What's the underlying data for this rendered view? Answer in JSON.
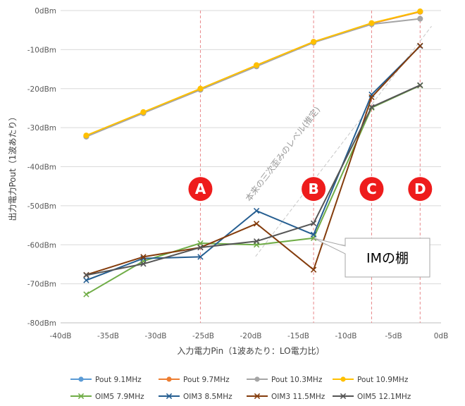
{
  "chart_data": {
    "type": "line",
    "title": "",
    "xlabel": "入力電力Pin（1波あたり：LO電力比）",
    "ylabel": "出力電力Pout（1波あたり）",
    "xlim": [
      -40,
      0
    ],
    "ylim": [
      -80,
      0
    ],
    "x_ticks": [
      {
        "value": -40,
        "label": "-40dB"
      },
      {
        "value": -35,
        "label": "-35dB"
      },
      {
        "value": -30,
        "label": "-30dB"
      },
      {
        "value": -25,
        "label": "-25dB"
      },
      {
        "value": -20,
        "label": "-20dB"
      },
      {
        "value": -15,
        "label": "-15dB"
      },
      {
        "value": -10,
        "label": "-10dB"
      },
      {
        "value": -5,
        "label": "-5dB"
      },
      {
        "value": 0,
        "label": "0dB"
      }
    ],
    "y_ticks": [
      {
        "value": 0,
        "label": "0dBm"
      },
      {
        "value": -10,
        "label": "-10dBm"
      },
      {
        "value": -20,
        "label": "-20dBm"
      },
      {
        "value": -30,
        "label": "-30dBm"
      },
      {
        "value": -40,
        "label": "-40dBm"
      },
      {
        "value": -50,
        "label": "-50dBm"
      },
      {
        "value": -60,
        "label": "-60dBm"
      },
      {
        "value": -70,
        "label": "-70dBm"
      },
      {
        "value": -80,
        "label": "-80dBm"
      }
    ],
    "grid": "horizontal",
    "legend_position": "bottom",
    "series": [
      {
        "name": "Pout 9.1MHz",
        "color": "#5b9bd5",
        "marker": "circle",
        "x": [
          -37.3,
          -31.3,
          -25.3,
          -19.4,
          -13.4,
          -7.3,
          -2.2
        ],
        "y": [
          -32.2,
          -26.2,
          -20.2,
          -14.2,
          -8.1,
          -3.3,
          -0.3
        ]
      },
      {
        "name": "Pout 9.7MHz",
        "color": "#ed7d31",
        "marker": "circle",
        "x": [
          -37.3,
          -31.3,
          -25.3,
          -19.4,
          -13.4,
          -7.3,
          -2.2
        ],
        "y": [
          -32.1,
          -26.1,
          -20.1,
          -14.0,
          -8.0,
          -3.3,
          -0.3
        ]
      },
      {
        "name": "Pout 10.3MHz",
        "color": "#a5a5a5",
        "marker": "circle",
        "x": [
          -37.3,
          -31.3,
          -25.3,
          -19.4,
          -13.4,
          -7.3,
          -2.2
        ],
        "y": [
          -32.3,
          -26.3,
          -20.3,
          -14.3,
          -8.2,
          -3.5,
          -2.1
        ]
      },
      {
        "name": "Pout 10.9MHz",
        "color": "#ffc000",
        "marker": "circle",
        "x": [
          -37.3,
          -31.3,
          -25.3,
          -19.4,
          -13.4,
          -7.3,
          -2.2
        ],
        "y": [
          -32.0,
          -26.0,
          -20.0,
          -14.0,
          -8.0,
          -3.2,
          -0.2
        ]
      },
      {
        "name": "OIM5 7.9MHz",
        "color": "#70ad47",
        "marker": "x",
        "x": [
          -37.3,
          -31.3,
          -25.3,
          -19.4,
          -13.4,
          -7.3,
          -2.2
        ],
        "y": [
          -72.7,
          -64.2,
          -59.6,
          -60.0,
          -58.3,
          -24.9,
          -19.2
        ]
      },
      {
        "name": "OIM3 8.5MHz",
        "color": "#255e91",
        "marker": "x",
        "x": [
          -37.3,
          -31.3,
          -25.3,
          -19.4,
          -13.4,
          -7.3,
          -2.2
        ],
        "y": [
          -69.1,
          -63.5,
          -63.1,
          -51.3,
          -57.4,
          -21.5,
          -9.1
        ]
      },
      {
        "name": "OIM3 11.5MHz",
        "color": "#843c0c",
        "marker": "x",
        "x": [
          -37.3,
          -31.3,
          -25.3,
          -19.4,
          -13.4,
          -7.3,
          -2.2
        ],
        "y": [
          -67.7,
          -63.1,
          -60.7,
          -54.6,
          -66.4,
          -22.2,
          -9.0
        ]
      },
      {
        "name": "OIM5 12.1MHz",
        "color": "#555555",
        "marker": "x",
        "x": [
          -37.3,
          -31.3,
          -25.3,
          -19.4,
          -13.4,
          -7.3,
          -2.2
        ],
        "y": [
          -67.8,
          -64.9,
          -60.7,
          -59.1,
          -54.5,
          -24.7,
          -19.1
        ]
      }
    ],
    "reference_lines": [
      {
        "label": "A",
        "x": -25.3,
        "color": "#e8888b"
      },
      {
        "label": "B",
        "x": -13.4,
        "color": "#e8888b"
      },
      {
        "label": "C",
        "x": -7.3,
        "color": "#e8888b"
      },
      {
        "label": "D",
        "x": -2.2,
        "color": "#e8888b"
      }
    ],
    "annotations": {
      "trend_text": "本来の三次歪みのレベル(推定)",
      "trend_line": {
        "x": [
          -19.5,
          -1.0
        ],
        "y": [
          -63.0,
          -4.0
        ]
      },
      "callout_text": "IMの棚",
      "callout_point": {
        "x": -13.4,
        "y": -58.3
      }
    },
    "colors": {
      "marker_fill": "#ee1c1c",
      "grid": "#d9d9d9",
      "axis": "#bfbfbf"
    }
  }
}
